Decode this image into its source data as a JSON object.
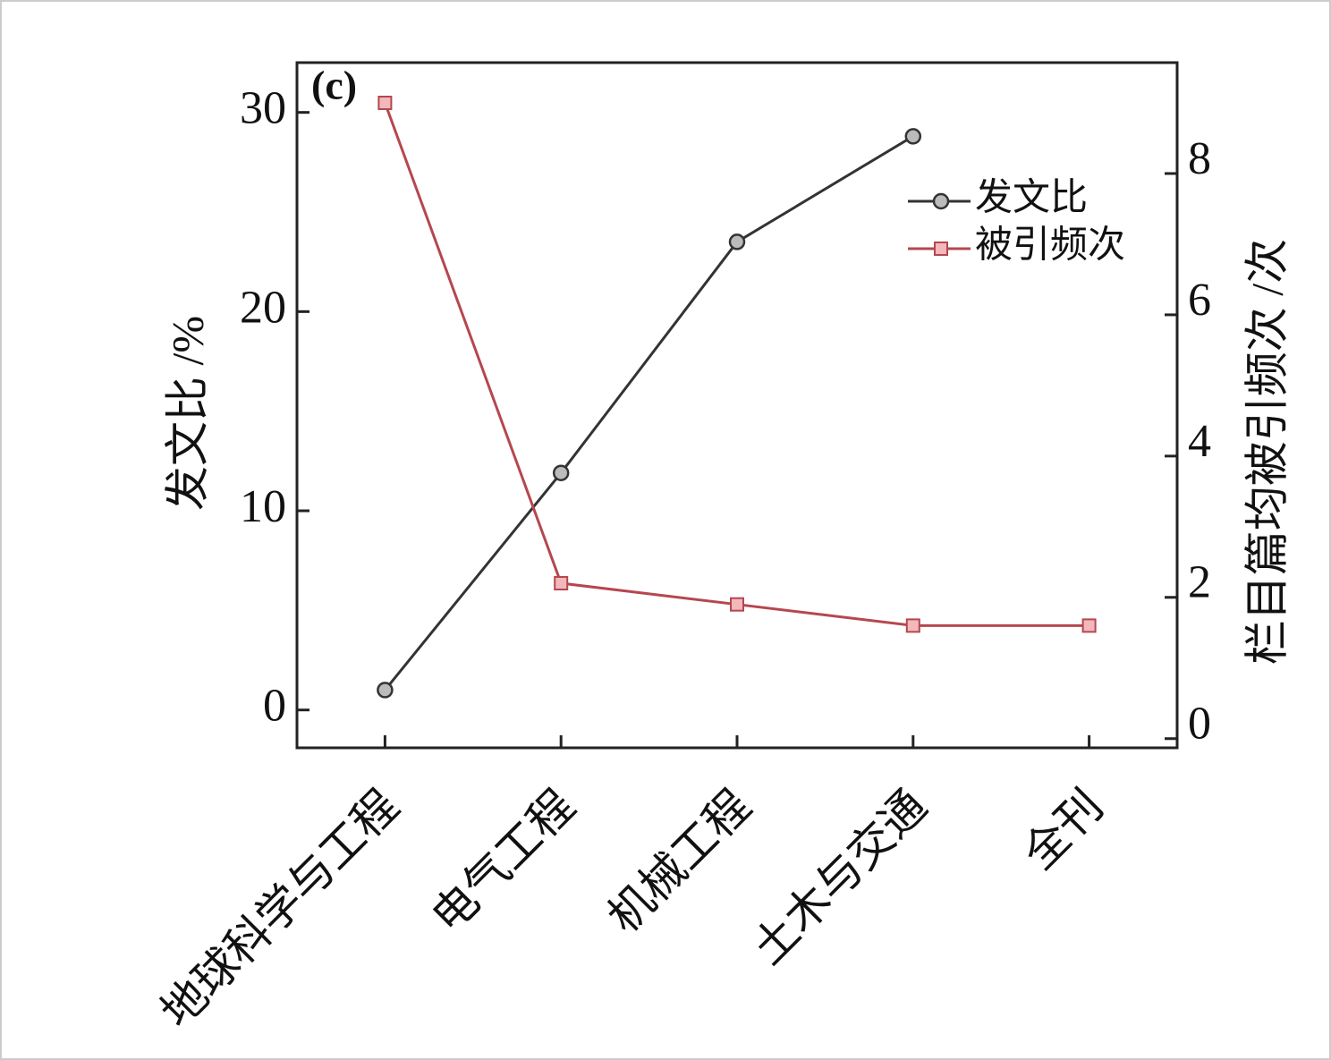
{
  "chart_data": {
    "type": "line",
    "annotation": "(c)",
    "categories": [
      "地球科学与工程",
      "电气工程",
      "机械工程",
      "土木与交通",
      "全刊"
    ],
    "y_label": "发文比 /%",
    "y2_label": "栏目篇均被引频次 /次",
    "ylim": [
      -1.9,
      32.5
    ],
    "yticks": [
      0,
      10,
      20,
      30
    ],
    "y2lim": [
      -0.13,
      9.57
    ],
    "y2ticks": [
      0,
      2,
      4,
      6,
      8
    ],
    "series": [
      {
        "name": "发文比",
        "color": "#333333",
        "marker": "circle",
        "values": [
          1.0,
          11.9,
          23.5,
          28.8,
          null
        ]
      },
      {
        "name": "被引频次",
        "color": "#b5474f",
        "marker": "square",
        "axis": "y2",
        "values": [
          9.0,
          2.2,
          1.9,
          1.6,
          1.6
        ]
      }
    ]
  }
}
